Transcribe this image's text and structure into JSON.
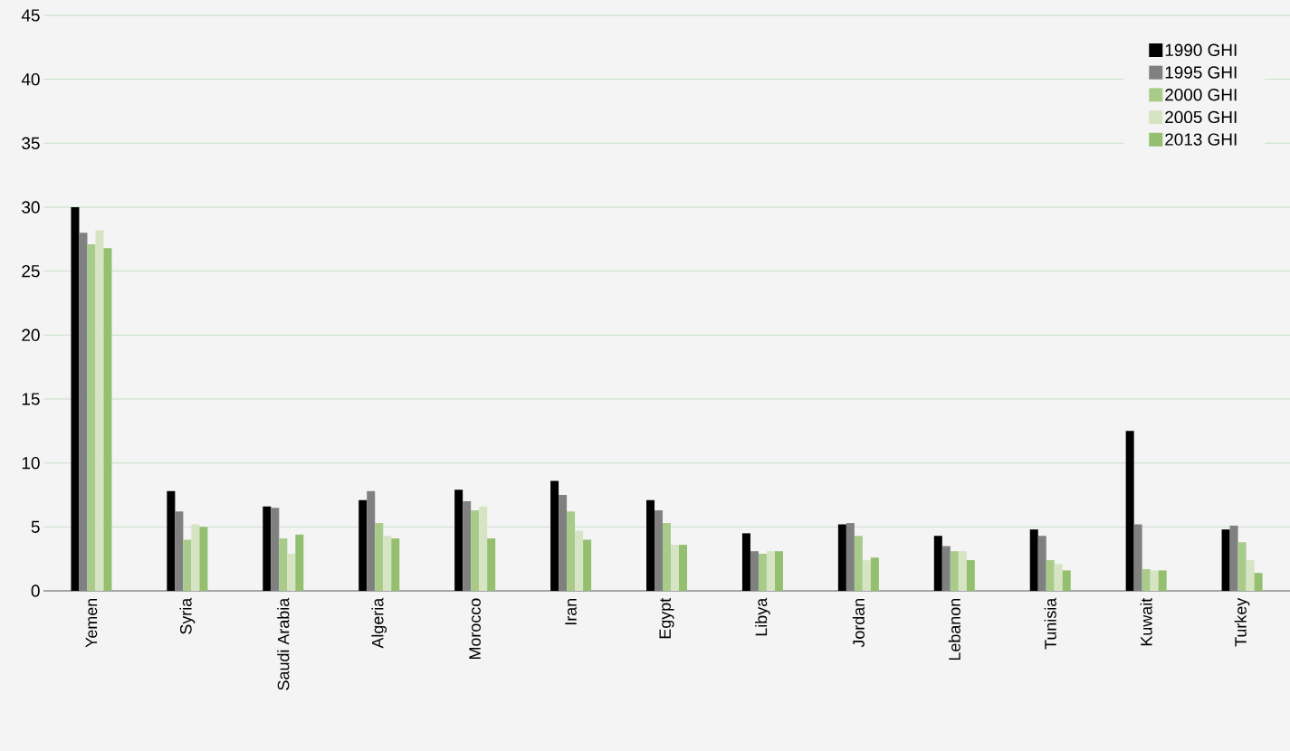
{
  "chart_data": {
    "type": "bar",
    "categories": [
      "Yemen",
      "Syria",
      "Saudi Arabia",
      "Algeria",
      "Morocco",
      "Iran",
      "Egypt",
      "Libya",
      "Jordan",
      "Lebanon",
      "Tunisia",
      "Kuwait",
      "Turkey"
    ],
    "series": [
      {
        "name": "1990 GHI",
        "color": "#000000",
        "values": [
          30.0,
          7.8,
          6.6,
          7.1,
          7.9,
          8.6,
          7.1,
          4.5,
          5.2,
          4.3,
          4.8,
          12.5,
          4.8
        ]
      },
      {
        "name": "1995 GHI",
        "color": "#808080",
        "values": [
          28.0,
          6.2,
          6.5,
          7.8,
          7.0,
          7.5,
          6.3,
          3.1,
          5.3,
          3.5,
          4.3,
          5.2,
          5.1
        ]
      },
      {
        "name": "2000 GHI",
        "color": "#a9cb8a",
        "values": [
          27.1,
          4.0,
          4.1,
          5.3,
          6.3,
          6.2,
          5.3,
          2.9,
          4.3,
          3.1,
          2.4,
          1.7,
          3.8
        ]
      },
      {
        "name": "2005 GHI",
        "color": "#d6e4c4",
        "values": [
          28.2,
          5.2,
          2.9,
          4.3,
          6.6,
          4.7,
          3.6,
          3.1,
          2.4,
          3.1,
          2.1,
          1.6,
          2.4
        ]
      },
      {
        "name": "2013 GHI",
        "color": "#93bf6f",
        "values": [
          26.8,
          5.0,
          4.4,
          4.1,
          4.1,
          4.0,
          3.6,
          3.1,
          2.6,
          2.4,
          1.6,
          1.6,
          1.4
        ]
      }
    ],
    "ylim": [
      0,
      45
    ],
    "yticks": [
      0,
      5,
      10,
      15,
      20,
      25,
      30,
      35,
      40,
      45
    ],
    "grid": "y",
    "legend": "top right"
  }
}
